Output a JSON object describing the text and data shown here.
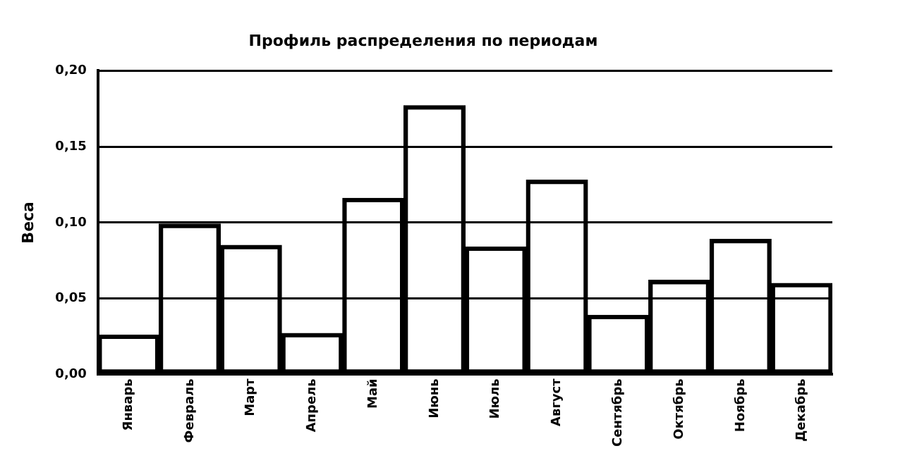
{
  "chart_data": {
    "type": "bar",
    "title": "Профиль распределения по периодам",
    "ylabel": "Веса",
    "categories": [
      "Январь",
      "Февраль",
      "Март",
      "Апрель",
      "Май",
      "Июнь",
      "Июль",
      "Август",
      "Сентябрь",
      "Октябрь",
      "Ноябрь",
      "Декабрь"
    ],
    "values": [
      0.026,
      0.099,
      0.085,
      0.027,
      0.116,
      0.177,
      0.084,
      0.128,
      0.039,
      0.062,
      0.089,
      0.06
    ],
    "color": "#000000",
    "ylim": [
      0,
      0.2
    ],
    "yticks": [
      {
        "value": 0,
        "label": "0,00"
      },
      {
        "value": 0.05,
        "label": "0,05"
      },
      {
        "value": 0.1,
        "label": "0,10"
      },
      {
        "value": 0.15,
        "label": "0,15"
      },
      {
        "value": 0.2,
        "label": "0,20"
      }
    ],
    "grid": "y",
    "legend": false
  }
}
